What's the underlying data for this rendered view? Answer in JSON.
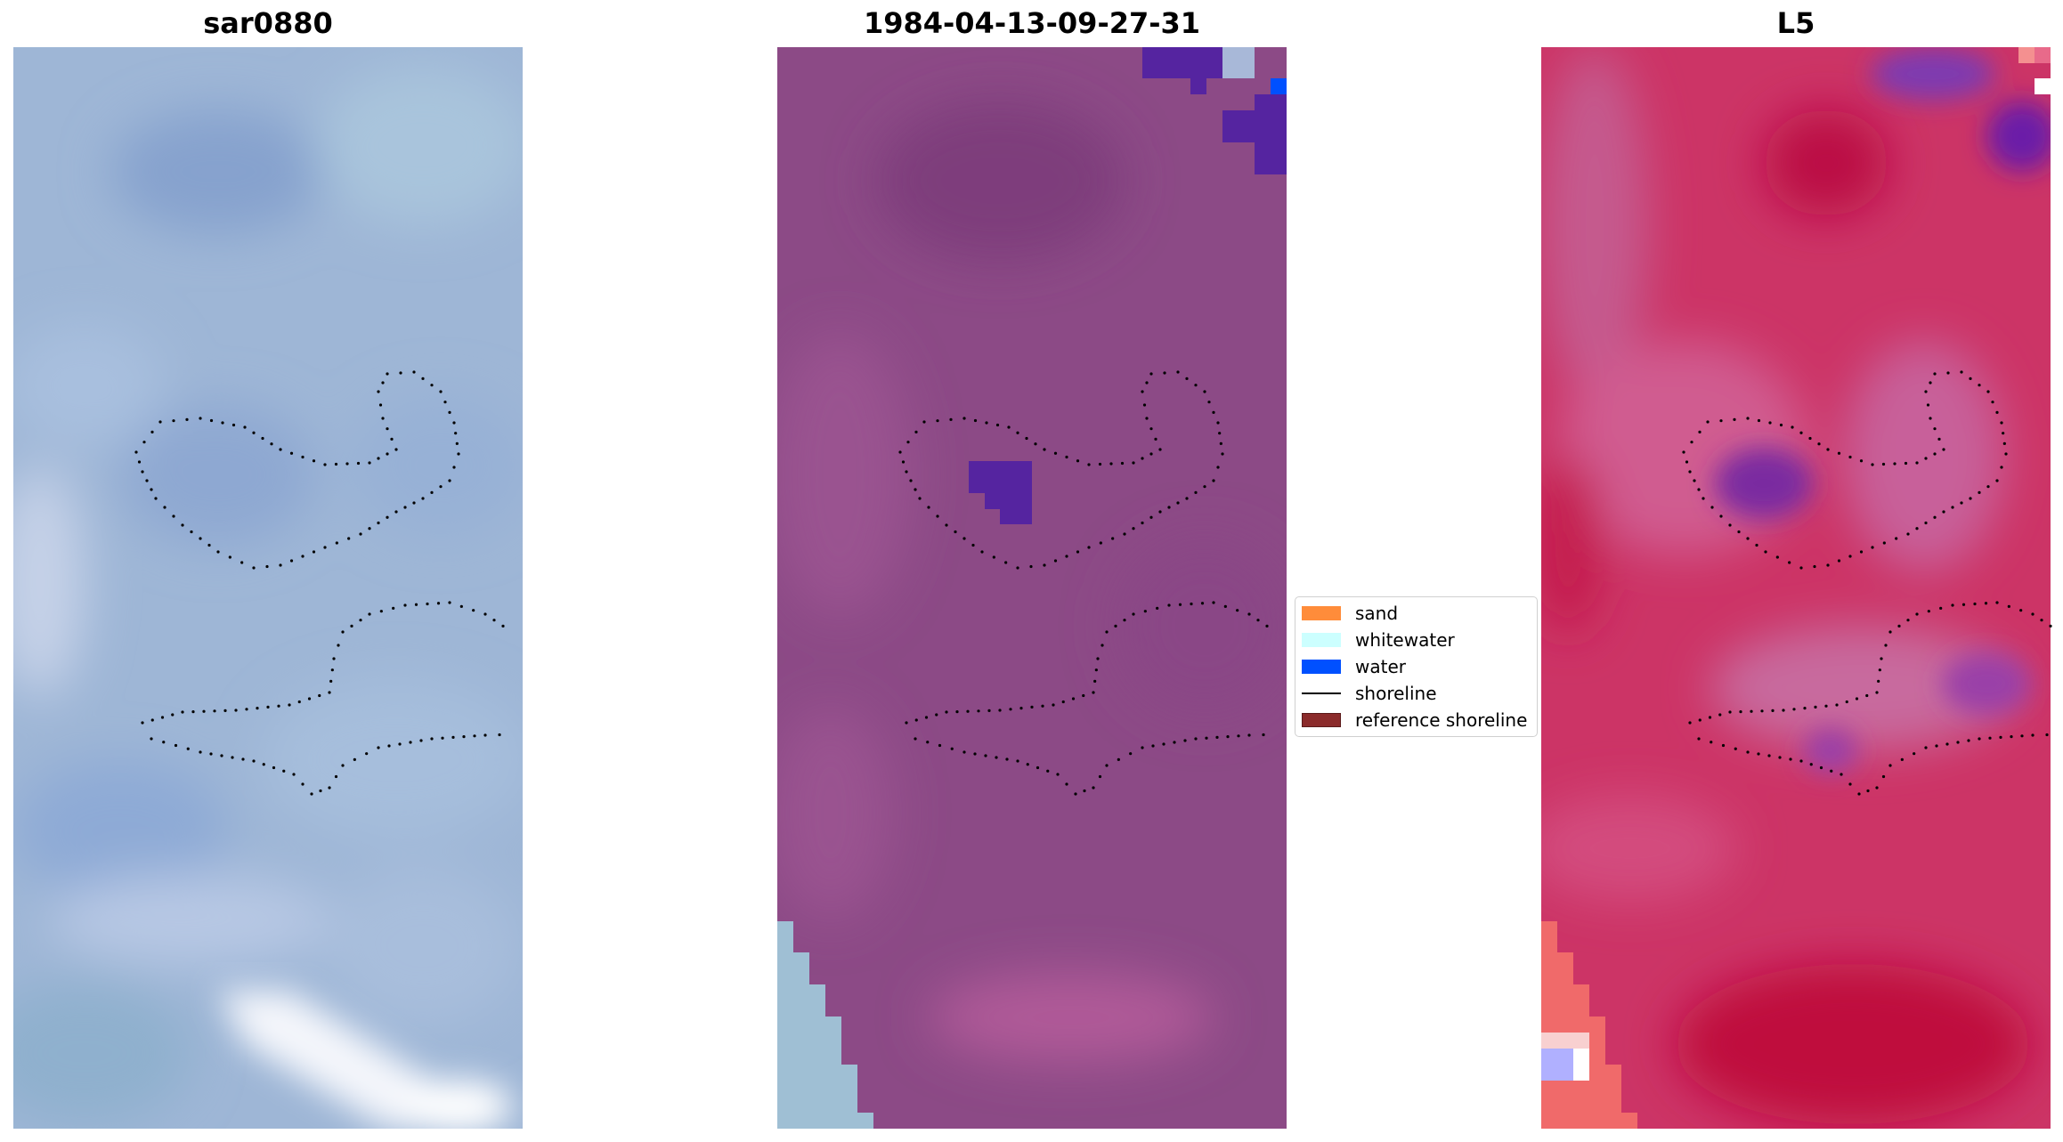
{
  "panels": [
    {
      "id": "rgb",
      "title": "sar0880"
    },
    {
      "id": "classified",
      "title": "1984-04-13-09-27-31"
    },
    {
      "id": "index",
      "title": "L5"
    }
  ],
  "legend": {
    "items": [
      {
        "label": "sand",
        "color": "#ff8c3a",
        "kind": "swatch"
      },
      {
        "label": "whitewater",
        "color": "#ccffff",
        "kind": "swatch"
      },
      {
        "label": "water",
        "color": "#0050ff",
        "kind": "swatch"
      },
      {
        "label": "shoreline",
        "color": "#000000",
        "kind": "line"
      },
      {
        "label": "reference shoreline",
        "color": "#8b2b2b",
        "kind": "swatch"
      }
    ]
  },
  "colors": {
    "rgb_base": "#9eb6d6",
    "classified_base": "#8c4a86",
    "index_base": "#cc3466",
    "water_class": "#5524a0",
    "shoreline_dots": "#000000"
  }
}
